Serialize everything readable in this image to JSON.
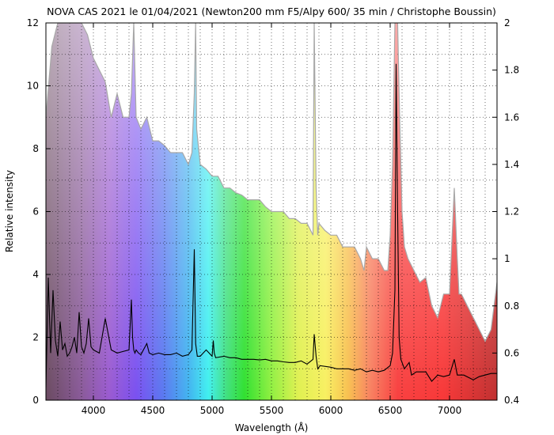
{
  "chart_data": {
    "type": "line",
    "title": "NOVA CAS 2021 le 01/04/2021 (Newton200 mm F5/Alpy 600/ 35 min / Christophe Boussin)",
    "xlabel": "Wavelength (Å)",
    "ylabel": "Relative intensity",
    "xlim": [
      3600,
      7400
    ],
    "ylim": [
      0,
      12
    ],
    "y2lim": [
      0.4,
      2.0
    ],
    "x_ticks": [
      4000,
      4500,
      5000,
      5500,
      6000,
      6500,
      7000
    ],
    "y_ticks": [
      0,
      2,
      4,
      6,
      8,
      10,
      12
    ],
    "y2_ticks": [
      0.4,
      0.6,
      0.8,
      1,
      1.2,
      1.4,
      1.6,
      1.8,
      2
    ],
    "grid": true,
    "background": "visible-spectrum color gradient",
    "series": [
      {
        "axis": "left",
        "color": "#000000",
        "x": [
          3600,
          3620,
          3640,
          3660,
          3680,
          3700,
          3720,
          3740,
          3760,
          3780,
          3800,
          3820,
          3840,
          3860,
          3880,
          3900,
          3920,
          3940,
          3960,
          3980,
          4000,
          4050,
          4100,
          4150,
          4200,
          4250,
          4300,
          4320,
          4330,
          4340,
          4350,
          4360,
          4380,
          4400,
          4450,
          4470,
          4500,
          4550,
          4600,
          4650,
          4700,
          4750,
          4800,
          4830,
          4850,
          4861,
          4875,
          4900,
          4950,
          5000,
          5010,
          5018,
          5030,
          5100,
          5150,
          5200,
          5250,
          5300,
          5350,
          5400,
          5450,
          5500,
          5550,
          5600,
          5650,
          5700,
          5750,
          5800,
          5850,
          5860,
          5876,
          5890,
          5910,
          6000,
          6050,
          6100,
          6150,
          6200,
          6250,
          6300,
          6350,
          6400,
          6450,
          6500,
          6520,
          6540,
          6550,
          6563,
          6575,
          6590,
          6620,
          6660,
          6680,
          6720,
          6800,
          6850,
          6900,
          6950,
          7000,
          7040,
          7065,
          7080,
          7120,
          7200,
          7250,
          7300,
          7350,
          7400
        ],
        "values": [
          0.4,
          3.9,
          1.5,
          3.5,
          1.9,
          1.4,
          2.5,
          1.6,
          1.8,
          1.4,
          1.5,
          1.7,
          2.0,
          1.5,
          2.8,
          1.7,
          1.5,
          1.8,
          2.6,
          1.7,
          1.6,
          1.5,
          2.6,
          1.6,
          1.5,
          1.55,
          1.6,
          3.2,
          2.0,
          1.6,
          1.5,
          1.6,
          1.5,
          1.45,
          1.8,
          1.5,
          1.45,
          1.5,
          1.45,
          1.45,
          1.5,
          1.4,
          1.45,
          1.6,
          4.8,
          1.8,
          1.4,
          1.4,
          1.6,
          1.4,
          1.9,
          1.5,
          1.35,
          1.4,
          1.35,
          1.35,
          1.3,
          1.3,
          1.3,
          1.28,
          1.3,
          1.25,
          1.25,
          1.22,
          1.2,
          1.2,
          1.25,
          1.15,
          1.3,
          2.1,
          1.4,
          1.0,
          1.1,
          1.05,
          1.0,
          1.0,
          1.0,
          0.95,
          1.0,
          0.9,
          0.95,
          0.9,
          0.95,
          1.1,
          1.5,
          3.5,
          10.7,
          6.0,
          2.0,
          1.3,
          1.0,
          1.2,
          0.8,
          0.9,
          0.9,
          0.6,
          0.8,
          0.75,
          0.8,
          1.3,
          0.8,
          0.8,
          0.8,
          0.65,
          0.75,
          0.8,
          0.85,
          0.85
        ]
      },
      {
        "axis": "right",
        "color": "#a0a0a0",
        "x": [
          3600,
          3650,
          3700,
          3750,
          3800,
          3850,
          3900,
          3950,
          4000,
          4050,
          4100,
          4150,
          4200,
          4250,
          4300,
          4320,
          4340,
          4360,
          4400,
          4450,
          4500,
          4550,
          4600,
          4650,
          4700,
          4750,
          4800,
          4830,
          4850,
          4861,
          4870,
          4900,
          4950,
          5000,
          5050,
          5100,
          5150,
          5200,
          5250,
          5300,
          5350,
          5400,
          5450,
          5500,
          5550,
          5600,
          5650,
          5700,
          5750,
          5800,
          5850,
          5860,
          5876,
          5890,
          5900,
          5950,
          6000,
          6050,
          6100,
          6150,
          6200,
          6250,
          6280,
          6300,
          6350,
          6400,
          6450,
          6480,
          6500,
          6520,
          6540,
          6563,
          6580,
          6600,
          6620,
          6650,
          6700,
          6750,
          6800,
          6850,
          6900,
          6950,
          7000,
          7040,
          7065,
          7080,
          7100,
          7150,
          7200,
          7250,
          7300,
          7350,
          7400
        ],
        "values": [
          1.6,
          1.9,
          2.0,
          2.0,
          2.0,
          2.0,
          2.0,
          1.95,
          1.85,
          1.8,
          1.75,
          1.6,
          1.7,
          1.6,
          1.6,
          1.7,
          2.0,
          1.6,
          1.55,
          1.6,
          1.5,
          1.5,
          1.48,
          1.45,
          1.45,
          1.45,
          1.4,
          1.45,
          1.7,
          2.0,
          1.55,
          1.4,
          1.38,
          1.35,
          1.35,
          1.3,
          1.3,
          1.28,
          1.27,
          1.25,
          1.25,
          1.25,
          1.22,
          1.2,
          1.2,
          1.2,
          1.17,
          1.17,
          1.15,
          1.15,
          1.1,
          2.0,
          1.3,
          1.1,
          1.15,
          1.12,
          1.1,
          1.1,
          1.05,
          1.05,
          1.05,
          1.0,
          0.95,
          1.05,
          1.0,
          1.0,
          0.95,
          0.95,
          1.1,
          1.4,
          2.0,
          2.0,
          1.6,
          1.2,
          1.05,
          1.0,
          0.95,
          0.9,
          0.92,
          0.8,
          0.75,
          0.85,
          0.85,
          1.3,
          1.0,
          0.85,
          0.85,
          0.8,
          0.75,
          0.7,
          0.65,
          0.7,
          0.9
        ]
      }
    ]
  }
}
